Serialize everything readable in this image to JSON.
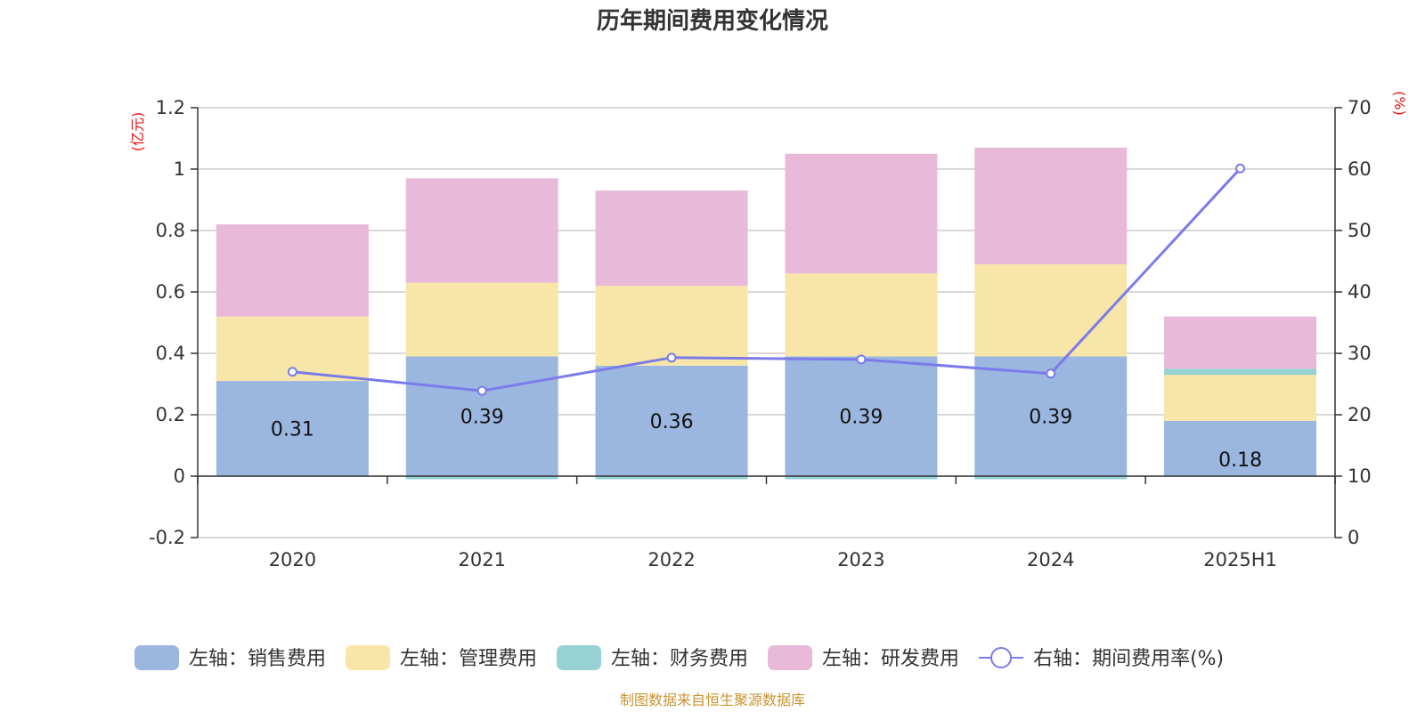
{
  "chart_data": {
    "type": "bar",
    "title": "历年期间费用变化情况",
    "categories": [
      "2020",
      "2021",
      "2022",
      "2023",
      "2024",
      "2025H1"
    ],
    "stacked": true,
    "series": [
      {
        "name": "左轴：销售费用",
        "axis": "left",
        "type": "bar",
        "color": "#9bb7e0",
        "values": [
          0.31,
          0.39,
          0.36,
          0.39,
          0.39,
          0.18
        ],
        "data_labels": true
      },
      {
        "name": "左轴：管理费用",
        "axis": "left",
        "type": "bar",
        "color": "#f8e6a8",
        "values": [
          0.21,
          0.24,
          0.26,
          0.27,
          0.3,
          0.15
        ]
      },
      {
        "name": "左轴：财务费用",
        "axis": "left",
        "type": "bar",
        "color": "#96d2d4",
        "values": [
          0.0,
          -0.01,
          -0.01,
          -0.01,
          -0.01,
          0.02
        ]
      },
      {
        "name": "左轴：研发费用",
        "axis": "left",
        "type": "bar",
        "color": "#e8b9d9",
        "values": [
          0.3,
          0.34,
          0.31,
          0.39,
          0.38,
          0.17
        ]
      },
      {
        "name": "右轴：期间费用率(%)",
        "axis": "right",
        "type": "line",
        "color": "#7b7bea",
        "values": [
          27.0,
          23.9,
          29.3,
          29.0,
          26.7,
          60.1
        ]
      }
    ],
    "left_axis": {
      "unit": "(亿元)",
      "ylim": [
        -0.2,
        1.2
      ],
      "ticks": [
        "1.2",
        "1",
        "0.8",
        "0.6",
        "0.4",
        "0.2",
        "0",
        "-0.2"
      ]
    },
    "right_axis": {
      "unit": "(%)",
      "ylim": [
        0,
        70
      ],
      "ticks": [
        "70",
        "60",
        "50",
        "40",
        "30",
        "20",
        "10",
        "0"
      ]
    },
    "grid": true,
    "legend_position": "bottom",
    "source": "制图数据来自恒生聚源数据库"
  }
}
